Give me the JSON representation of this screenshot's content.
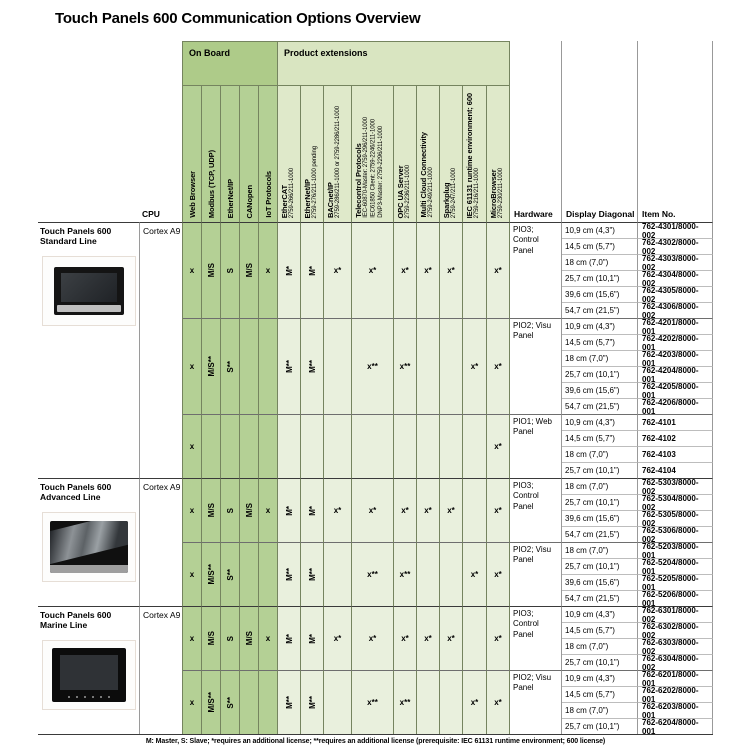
{
  "title": "Touch Panels 600 Communication Options Overview",
  "footnote": "M: Master, S: Slave; *requires an additional license; **requires an additional license (prerequisite: IEC 61131 runtime environment; 600 license)",
  "colors": {
    "on_board_green": "#b4d095",
    "extensions_light_green": "#e9f0dd",
    "on_board_header_green": "#aecb89",
    "extensions_header_green": "#d9e5c1"
  },
  "header": {
    "cpu": "CPU",
    "hardware": "Hardware",
    "display": "Display Diagonal",
    "item": "Item No.",
    "on_board": {
      "label": "On Board",
      "columns": [
        "Web Browser",
        "Modbus (TCP, UDP)",
        "EtherNet/IP",
        "CANopen",
        "IoT Protocols"
      ]
    },
    "extensions": {
      "label": "Product extensions",
      "columns": [
        {
          "name": "EtherCAT",
          "sub": [
            "2759-266/211-1000"
          ]
        },
        {
          "name": "EtherNet/IP",
          "sub": [
            "2759-276/211-1000 pending"
          ]
        },
        {
          "name": "BACnet/IP",
          "sub": [
            "2759-286/211-1000 or 2759-2286/211-1000"
          ]
        },
        {
          "name": "Telecontrol Protocols",
          "sub": [
            "IEC-60870-Master: 2759-296/211-1000",
            "IEC61850 Client: 2759-2246/211-1000",
            "DNP3-Master: 2759-2296/211-1000"
          ]
        },
        {
          "name": "OPC UA Server",
          "sub": [
            "2759-2236/211-1000"
          ]
        },
        {
          "name": "Multi Cloud Connectivity",
          "sub": [
            "2759-249/211-1000"
          ]
        },
        {
          "name": "Sparkplug",
          "sub": [
            "2759-247/211-1000"
          ]
        },
        {
          "name": "IEC 61131 runtime environment; 600",
          "sub": [
            "2759-216/211-1000"
          ]
        },
        {
          "name": "MicroBrowser",
          "sub": [
            "2759-230/211-1000"
          ]
        }
      ]
    }
  },
  "sections": [
    {
      "name": [
        "Touch Panels 600",
        "Standard Line"
      ],
      "cpu": "Cortex A9",
      "image": "standard",
      "groups": [
        {
          "hardware": "PIO3; Control Panel",
          "on_board_marks": [
            "x",
            "M/S",
            "S",
            "M/S",
            "x"
          ],
          "ext_marks": [
            "M*",
            "M*",
            "x*",
            "x*",
            "x*",
            "x*",
            "x*",
            "",
            "x*"
          ],
          "rows": [
            {
              "display": "10,9 cm (4,3\")",
              "item": "762-4301/8000-002"
            },
            {
              "display": "14,5 cm (5,7\")",
              "item": "762-4302/8000-002"
            },
            {
              "display": "18 cm (7,0\")",
              "item": "762-4303/8000-002"
            },
            {
              "display": "25,7 cm (10,1\")",
              "item": "762-4304/8000-002"
            },
            {
              "display": "39,6 cm (15,6\")",
              "item": "762-4305/8000-002"
            },
            {
              "display": "54,7 cm (21,5\")",
              "item": "762-4306/8000-002"
            }
          ]
        },
        {
          "hardware": "PIO2; Visu Panel",
          "on_board_marks": [
            "x",
            "M/S**",
            "S**",
            "",
            ""
          ],
          "ext_marks": [
            "M**",
            "M**",
            "",
            "x**",
            "x**",
            "",
            "",
            "x*",
            "x*"
          ],
          "rows": [
            {
              "display": "10,9 cm (4,3\")",
              "item": "762-4201/8000-001"
            },
            {
              "display": "14,5 cm (5,7\")",
              "item": "762-4202/8000-001"
            },
            {
              "display": "18 cm (7,0\")",
              "item": "762-4203/8000-001"
            },
            {
              "display": "25,7 cm (10,1\")",
              "item": "762-4204/8000-001"
            },
            {
              "display": "39,6 cm (15,6\")",
              "item": "762-4205/8000-001"
            },
            {
              "display": "54,7 cm (21,5\")",
              "item": "762-4206/8000-001"
            }
          ]
        },
        {
          "hardware": "PIO1; Web Panel",
          "on_board_marks": [
            "x",
            "",
            "",
            "",
            ""
          ],
          "ext_marks": [
            "",
            "",
            "",
            "",
            "",
            "",
            "",
            "",
            "x*"
          ],
          "rows": [
            {
              "display": "10,9 cm (4,3\")",
              "item": "762-4101"
            },
            {
              "display": "14,5 cm (5,7\")",
              "item": "762-4102"
            },
            {
              "display": "18 cm (7,0\")",
              "item": "762-4103"
            },
            {
              "display": "25,7 cm (10,1\")",
              "item": "762-4104"
            }
          ]
        }
      ]
    },
    {
      "name": [
        "Touch Panels 600",
        "Advanced Line"
      ],
      "cpu": "Cortex A9",
      "image": "advanced",
      "groups": [
        {
          "hardware": "PIO3; Control Panel",
          "on_board_marks": [
            "x",
            "M/S",
            "S",
            "M/S",
            "x"
          ],
          "ext_marks": [
            "M*",
            "M*",
            "x*",
            "x*",
            "x*",
            "x*",
            "x*",
            "",
            "x*"
          ],
          "rows": [
            {
              "display": "18 cm (7,0\")",
              "item": "762-5303/8000-002"
            },
            {
              "display": "25,7 cm (10,1\")",
              "item": "762-5304/8000-002"
            },
            {
              "display": "39,6 cm (15,6\")",
              "item": "762-5305/8000-002"
            },
            {
              "display": "54,7 cm (21,5\")",
              "item": "762-5306/8000-002"
            }
          ]
        },
        {
          "hardware": "PIO2; Visu Panel",
          "on_board_marks": [
            "x",
            "M/S**",
            "S**",
            "",
            ""
          ],
          "ext_marks": [
            "M**",
            "M**",
            "",
            "x**",
            "x**",
            "",
            "",
            "x*",
            "x*"
          ],
          "rows": [
            {
              "display": "18 cm (7,0\")",
              "item": "762-5203/8000-001"
            },
            {
              "display": "25,7 cm (10,1\")",
              "item": "762-5204/8000-001"
            },
            {
              "display": "39,6 cm (15,6\")",
              "item": "762-5205/8000-001"
            },
            {
              "display": "54,7 cm (21,5\")",
              "item": "762-5206/8000-001"
            }
          ]
        }
      ]
    },
    {
      "name": [
        "Touch Panels 600",
        "Marine Line"
      ],
      "cpu": "Cortex A9",
      "image": "marine",
      "groups": [
        {
          "hardware": "PIO3; Control Panel",
          "on_board_marks": [
            "x",
            "M/S",
            "S",
            "M/S",
            "x"
          ],
          "ext_marks": [
            "M*",
            "M*",
            "x*",
            "x*",
            "x*",
            "x*",
            "x*",
            "",
            "x*"
          ],
          "rows": [
            {
              "display": "10,9 cm (4,3\")",
              "item": "762-6301/8000-002"
            },
            {
              "display": "14,5 cm (5,7\")",
              "item": "762-6302/8000-002"
            },
            {
              "display": "18 cm (7,0\")",
              "item": "762-6303/8000-002"
            },
            {
              "display": "25,7 cm (10,1\")",
              "item": "762-6304/8000-002"
            }
          ]
        },
        {
          "hardware": "PIO2; Visu Panel",
          "on_board_marks": [
            "x",
            "M/S**",
            "S**",
            "",
            ""
          ],
          "ext_marks": [
            "M**",
            "M**",
            "",
            "x**",
            "x**",
            "",
            "",
            "x*",
            "x*"
          ],
          "rows": [
            {
              "display": "10,9 cm (4,3\")",
              "item": "762-6201/8000-001"
            },
            {
              "display": "14,5 cm (5,7\")",
              "item": "762-6202/8000-001"
            },
            {
              "display": "18 cm (7,0\")",
              "item": "762-6203/8000-001"
            },
            {
              "display": "25,7 cm (10,1\")",
              "item": "762-6204/8000-001"
            }
          ]
        }
      ]
    }
  ]
}
